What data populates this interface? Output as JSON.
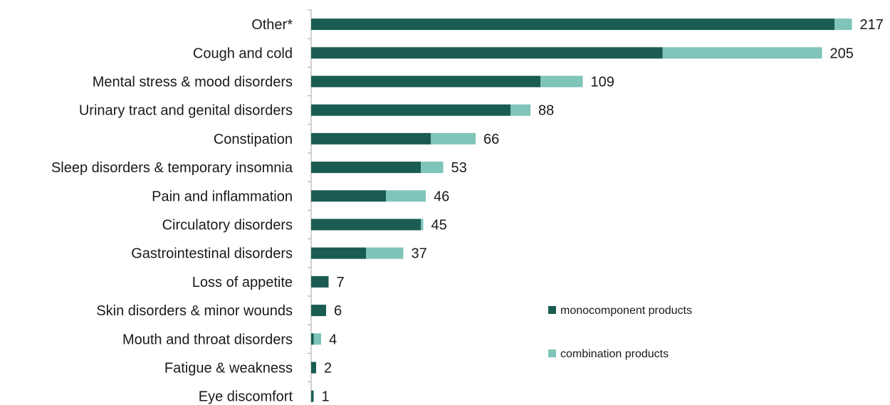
{
  "chart_data": {
    "type": "bar",
    "orientation": "horizontal",
    "stacked": true,
    "categories": [
      "Other*",
      "Cough and cold",
      "Mental stress & mood disorders",
      "Urinary tract and genital disorders",
      "Constipation",
      "Sleep disorders & temporary insomnia",
      "Pain and inflammation",
      "Circulatory disorders",
      "Gastrointestinal disorders",
      "Loss of appetite",
      "Skin disorders & minor wounds",
      "Mouth and throat disorders",
      "Fatigue & weakness",
      "Eye discomfort"
    ],
    "series": [
      {
        "name": "monocomponent products",
        "color": "#1a5c52",
        "values": [
          210,
          141,
          92,
          80,
          48,
          44,
          30,
          44,
          22,
          7,
          6,
          1,
          2,
          1
        ]
      },
      {
        "name": "combination products",
        "color": "#7fc4b8",
        "values": [
          7,
          64,
          17,
          8,
          18,
          9,
          16,
          1,
          15,
          0,
          0,
          3,
          0,
          0
        ]
      }
    ],
    "totals": [
      217,
      205,
      109,
      88,
      66,
      53,
      46,
      45,
      37,
      7,
      6,
      4,
      2,
      1
    ],
    "xlim": [
      0,
      217
    ],
    "grid": false,
    "legend_position": "right"
  }
}
